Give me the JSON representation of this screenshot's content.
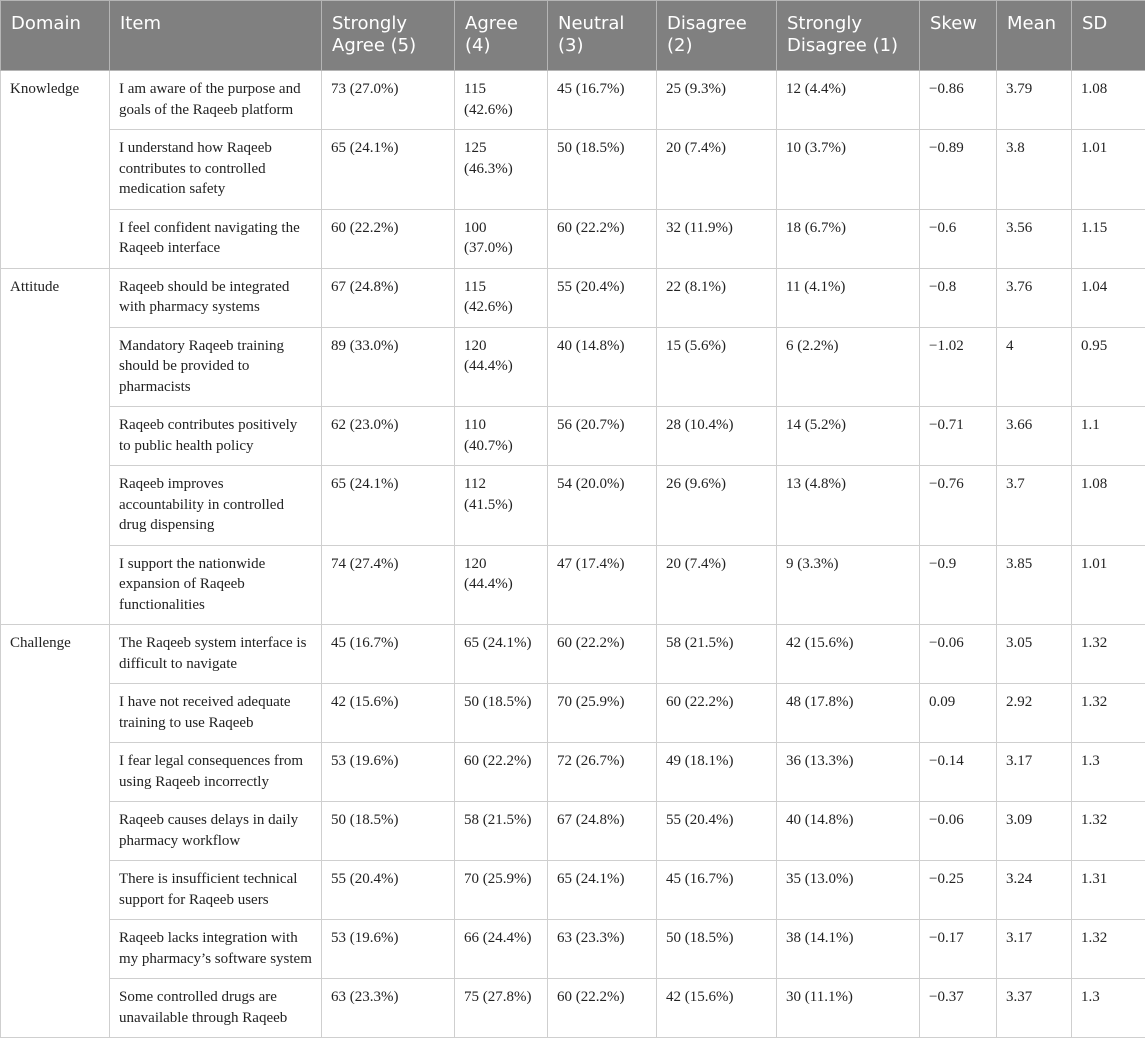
{
  "table": {
    "header": [
      "Domain",
      "Item",
      "Strongly Agree (5)",
      "Agree (4)",
      "Neutral (3)",
      "Disagree (2)",
      "Strongly Disagree (1)",
      "Skew",
      "Mean",
      "SD"
    ],
    "groups": [
      {
        "domain": "Knowledge",
        "rows": [
          [
            "I am aware of the purpose and goals of the Raqeeb platform",
            "73 (27.0%)",
            "115 (42.6%)",
            "45 (16.7%)",
            "25 (9.3%)",
            "12 (4.4%)",
            "−0.86",
            "3.79",
            "1.08"
          ],
          [
            "I understand how Raqeeb contributes to controlled medication safety",
            "65 (24.1%)",
            "125 (46.3%)",
            "50 (18.5%)",
            "20 (7.4%)",
            "10 (3.7%)",
            "−0.89",
            "3.8",
            "1.01"
          ],
          [
            "I feel confident navigating the Raqeeb interface",
            "60 (22.2%)",
            "100 (37.0%)",
            "60 (22.2%)",
            "32 (11.9%)",
            "18 (6.7%)",
            "−0.6",
            "3.56",
            "1.15"
          ]
        ]
      },
      {
        "domain": "Attitude",
        "rows": [
          [
            "Raqeeb should be integrated with pharmacy systems",
            "67 (24.8%)",
            "115 (42.6%)",
            "55 (20.4%)",
            "22 (8.1%)",
            "11 (4.1%)",
            "−0.8",
            "3.76",
            "1.04"
          ],
          [
            "Mandatory Raqeeb training should be provided to pharmacists",
            "89 (33.0%)",
            "120 (44.4%)",
            "40 (14.8%)",
            "15 (5.6%)",
            "6 (2.2%)",
            "−1.02",
            "4",
            "0.95"
          ],
          [
            "Raqeeb contributes positively to public health policy",
            "62 (23.0%)",
            "110 (40.7%)",
            "56 (20.7%)",
            "28 (10.4%)",
            "14 (5.2%)",
            "−0.71",
            "3.66",
            "1.1"
          ],
          [
            "Raqeeb improves accountability in controlled drug dispensing",
            "65 (24.1%)",
            "112 (41.5%)",
            "54 (20.0%)",
            "26 (9.6%)",
            "13 (4.8%)",
            "−0.76",
            "3.7",
            "1.08"
          ],
          [
            "I support the nationwide expansion of Raqeeb functionalities",
            "74 (27.4%)",
            "120 (44.4%)",
            "47 (17.4%)",
            "20 (7.4%)",
            "9 (3.3%)",
            "−0.9",
            "3.85",
            "1.01"
          ]
        ]
      },
      {
        "domain": "Challenge",
        "rows": [
          [
            "The Raqeeb system interface is difficult to navigate",
            "45 (16.7%)",
            "65 (24.1%)",
            "60 (22.2%)",
            "58 (21.5%)",
            "42 (15.6%)",
            "−0.06",
            "3.05",
            "1.32"
          ],
          [
            "I have not received adequate training to use Raqeeb",
            "42 (15.6%)",
            "50 (18.5%)",
            "70 (25.9%)",
            "60 (22.2%)",
            "48 (17.8%)",
            "0.09",
            "2.92",
            "1.32"
          ],
          [
            "I fear legal consequences from using Raqeeb incorrectly",
            "53 (19.6%)",
            "60 (22.2%)",
            "72 (26.7%)",
            "49 (18.1%)",
            "36 (13.3%)",
            "−0.14",
            "3.17",
            "1.3"
          ],
          [
            "Raqeeb causes delays in daily pharmacy workflow",
            "50 (18.5%)",
            "58 (21.5%)",
            "67 (24.8%)",
            "55 (20.4%)",
            "40 (14.8%)",
            "−0.06",
            "3.09",
            "1.32"
          ],
          [
            "There is insufficient technical support for Raqeeb users",
            "55 (20.4%)",
            "70 (25.9%)",
            "65 (24.1%)",
            "45 (16.7%)",
            "35 (13.0%)",
            "−0.25",
            "3.24",
            "1.31"
          ],
          [
            "Raqeeb lacks integration with my pharmacy’s software system",
            "53 (19.6%)",
            "66 (24.4%)",
            "63 (23.3%)",
            "50 (18.5%)",
            "38 (14.1%)",
            "−0.17",
            "3.17",
            "1.32"
          ],
          [
            "Some controlled drugs are unavailable through Raqeeb",
            "63 (23.3%)",
            "75 (27.8%)",
            "60 (22.2%)",
            "42 (15.6%)",
            "30 (11.1%)",
            "−0.37",
            "3.37",
            "1.3"
          ]
        ]
      }
    ]
  }
}
